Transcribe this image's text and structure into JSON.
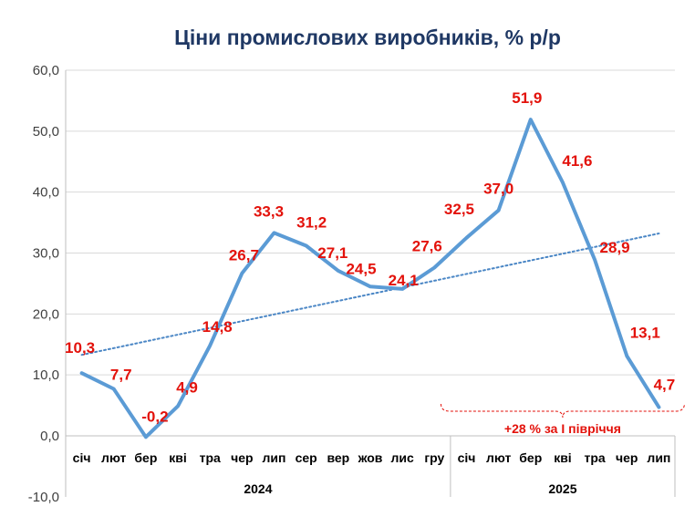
{
  "chart_data": {
    "type": "line",
    "title": "Ціни промислових виробників, % р/р",
    "xlabel": "",
    "ylabel": "",
    "ylim": [
      -10,
      60
    ],
    "yticks": [
      -10,
      0,
      10,
      20,
      30,
      40,
      50,
      60
    ],
    "ytick_labels": [
      "-10,0",
      "0,0",
      "10,0",
      "20,0",
      "30,0",
      "40,0",
      "50,0",
      "60,0"
    ],
    "groups": [
      {
        "label": "2024",
        "categories": [
          "січ",
          "лют",
          "бер",
          "кві",
          "тра",
          "чер",
          "лип",
          "сер",
          "вер",
          "жов",
          "лис",
          "гру"
        ]
      },
      {
        "label": "2025",
        "categories": [
          "січ",
          "лют",
          "бер",
          "кві",
          "тра",
          "чер",
          "лип"
        ]
      }
    ],
    "categories": [
      "січ",
      "лют",
      "бер",
      "кві",
      "тра",
      "чер",
      "лип",
      "сер",
      "вер",
      "жов",
      "лис",
      "гру",
      "січ",
      "лют",
      "бер",
      "кві",
      "тра",
      "чер",
      "лип"
    ],
    "series": [
      {
        "values": [
          10.3,
          7.7,
          -0.2,
          4.9,
          14.8,
          26.7,
          33.3,
          31.2,
          27.1,
          24.5,
          24.1,
          27.6,
          32.5,
          37.0,
          51.9,
          41.6,
          28.9,
          13.1,
          4.7
        ],
        "labels": [
          "10,3",
          "7,7",
          "-0,2",
          "4,9",
          "14,8",
          "26,7",
          "33,3",
          "31,2",
          "27,1",
          "24,5",
          "24,1",
          "27,6",
          "32,5",
          "37,0",
          "51,9",
          "41,6",
          "28,9",
          "13,1",
          "4,7"
        ],
        "color": "#5b9bd5"
      }
    ],
    "trendline": {
      "type": "linear",
      "color": "#4a86c5",
      "style": "dotted"
    },
    "annotation": "+28 % за І півріччя",
    "annotation_color": "#e3120b",
    "grid": true,
    "legend": "none"
  }
}
